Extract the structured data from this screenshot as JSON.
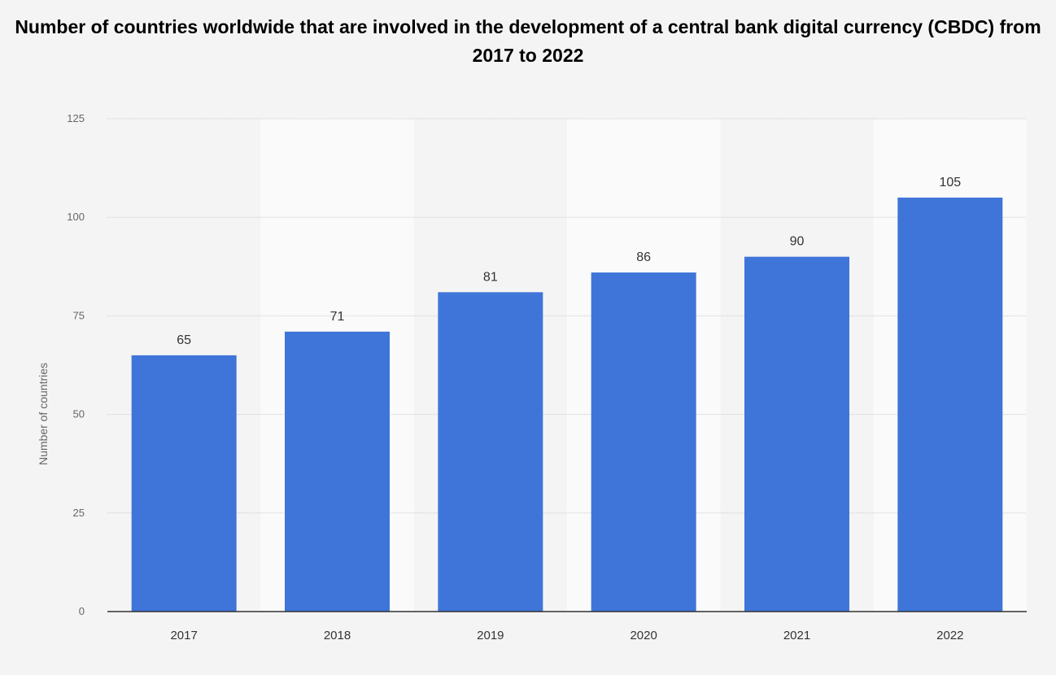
{
  "chart_data": {
    "type": "bar",
    "title": "Number of countries worldwide that are involved in the development of a central bank digital currency (CBDC) from 2017 to 2022",
    "xlabel": "",
    "ylabel": "Number of countries",
    "categories": [
      "2017",
      "2018",
      "2019",
      "2020",
      "2021",
      "2022"
    ],
    "values": [
      65,
      71,
      81,
      86,
      90,
      105
    ],
    "ylim": [
      0,
      125
    ],
    "yticks": [
      0,
      25,
      50,
      75,
      100,
      125
    ],
    "grid": true,
    "data_labels": true,
    "colors": {
      "bar": "#3f75d8",
      "band": "#fafafa",
      "background": "#f4f4f4"
    }
  }
}
